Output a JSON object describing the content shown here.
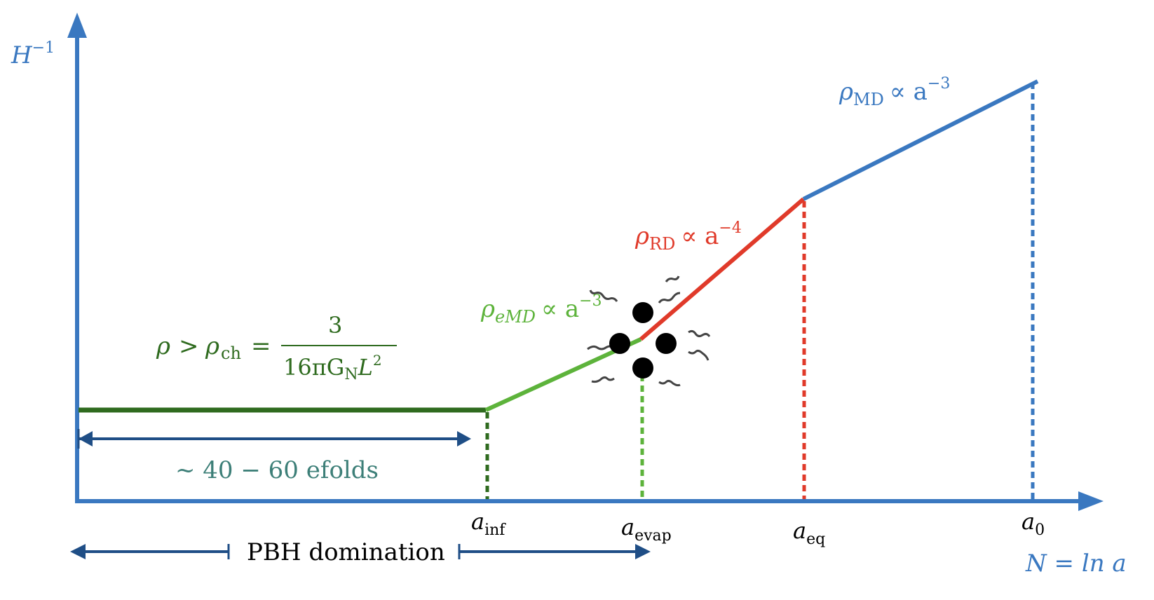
{
  "colors": {
    "axis": "#3a78c0",
    "dark_green": "#2f6b1f",
    "light_green": "#5db33b",
    "red": "#e03a2a",
    "blue": "#3a78c0",
    "navy": "#1f4e86",
    "teal": "#3d7f78",
    "black": "#000000"
  },
  "axes": {
    "y_label_main": "H",
    "y_label_sup": "−1",
    "x_label": "N = ln a"
  },
  "epochs": {
    "ch": {
      "rho": "ρ",
      "gt": ">",
      "rho_sub_base": "ρ",
      "sub": "ch",
      "eq": "=",
      "numerator": "3",
      "denominator_a": "16πG",
      "denominator_sub": "N",
      "denominator_b": "L",
      "denominator_sup": "2"
    },
    "emd": {
      "rho": "ρ",
      "sub": "eMD",
      "prop": "∝ a",
      "sup": "−3"
    },
    "rd": {
      "rho": "ρ",
      "sub": "RD",
      "prop": "∝ a",
      "sup": "−4"
    },
    "md": {
      "rho": "ρ",
      "sub": "MD",
      "prop": "∝ a",
      "sup": "−3"
    }
  },
  "ticks": [
    {
      "base": "a",
      "sub": "inf"
    },
    {
      "base": "a",
      "sub": "evap"
    },
    {
      "base": "a",
      "sub": "eq"
    },
    {
      "base": "a",
      "sub": "0"
    }
  ],
  "annotations": {
    "efolds": "~ 40 − 60 efolds",
    "pbh": "PBH domination"
  }
}
